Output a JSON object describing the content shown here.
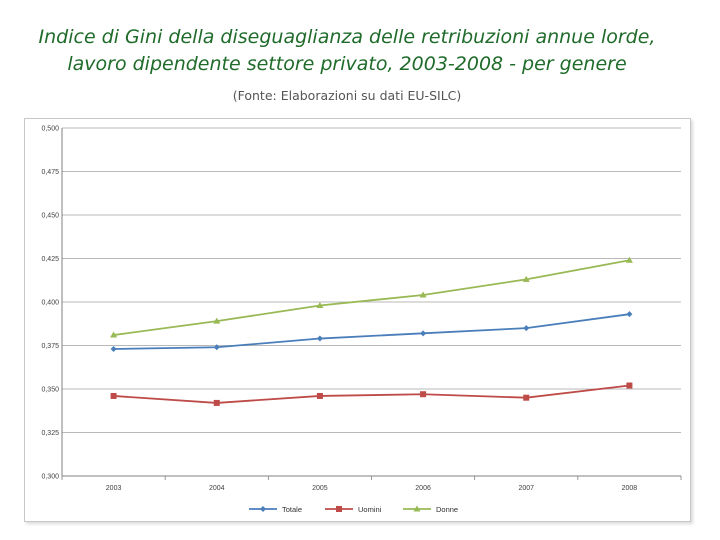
{
  "header": {
    "title_line1": "Indice di Gini della diseguaglianza delle retribuzioni annue lorde,",
    "title_line2": "lavoro dipendente settore privato, 2003-2008 -  per genere",
    "subtitle": "(Fonte: Elaborazioni su dati EU-SILC)"
  },
  "chart_data": {
    "type": "line",
    "categories": [
      "2003",
      "2004",
      "2005",
      "2006",
      "2007",
      "2008"
    ],
    "ylim": [
      0.3,
      0.5
    ],
    "yticks": [
      "0,500",
      "0,475",
      "0,450",
      "0,425",
      "0,400",
      "0,375",
      "0,350",
      "0,325",
      "0,300"
    ],
    "grid": true,
    "legend": "bottom",
    "series": [
      {
        "name": "Totale",
        "color": "#4a7ebb",
        "marker": "diamond",
        "values": [
          0.373,
          0.374,
          0.379,
          0.382,
          0.385,
          0.393
        ]
      },
      {
        "name": "Uomini",
        "color": "#be4b48",
        "marker": "square",
        "values": [
          0.346,
          0.342,
          0.346,
          0.347,
          0.345,
          0.352
        ]
      },
      {
        "name": "Donne",
        "color": "#98b954",
        "marker": "triangle",
        "values": [
          0.381,
          0.389,
          0.398,
          0.404,
          0.413,
          0.424
        ]
      }
    ]
  }
}
